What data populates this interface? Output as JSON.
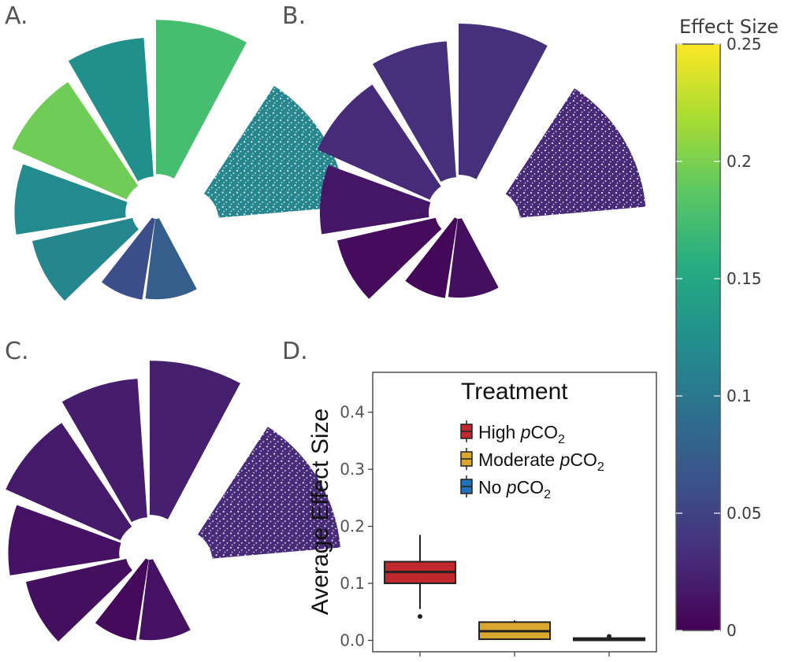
{
  "panels": {
    "A": {
      "label": "A.",
      "segment_values": [
        0.075,
        0.06,
        0.115,
        0.12,
        0.195,
        0.125,
        0.175,
        0.115
      ]
    },
    "B": {
      "label": "B.",
      "segment_values": [
        0.01,
        0.005,
        0.008,
        0.015,
        0.03,
        0.035,
        0.035,
        0.03
      ]
    },
    "C": {
      "label": "C.",
      "segment_values": [
        0.012,
        0.006,
        0.01,
        0.012,
        0.018,
        0.02,
        0.022,
        0.03
      ]
    },
    "D": {
      "label": "D."
    }
  },
  "colorbar": {
    "title": "Effect Size",
    "min": 0,
    "max": 0.25,
    "ticks": [
      {
        "value": 0.25,
        "label": "0.25"
      },
      {
        "value": 0.2,
        "label": "0.2"
      },
      {
        "value": 0.15,
        "label": "0.15"
      },
      {
        "value": 0.1,
        "label": "0.1"
      },
      {
        "value": 0.05,
        "label": "0.05"
      },
      {
        "value": 0,
        "label": "0"
      }
    ],
    "palette": [
      "#440154",
      "#472c7a",
      "#3b518b",
      "#2c718e",
      "#21908d",
      "#27ad81",
      "#5cc863",
      "#aadc32",
      "#fde725"
    ]
  },
  "chart_data": {
    "type": "boxplot",
    "ylabel": "Average Effect Size",
    "xlabel": "",
    "ylim": [
      -0.02,
      0.47
    ],
    "yticks": [
      {
        "value": 0.0,
        "label": "0.0"
      },
      {
        "value": 0.1,
        "label": "0.1"
      },
      {
        "value": 0.2,
        "label": "0.2"
      },
      {
        "value": 0.3,
        "label": "0.3"
      },
      {
        "value": 0.4,
        "label": "0.4"
      }
    ],
    "categories": [
      "High pCO2",
      "Moderate pCO2",
      "No pCO2"
    ],
    "legend": {
      "title": "Treatment",
      "position": "top-right",
      "entries": [
        {
          "prefix": "High ",
          "italic": "p",
          "main": "CO",
          "sub": "2"
        },
        {
          "prefix": "Moderate ",
          "italic": "p",
          "main": "CO",
          "sub": "2"
        },
        {
          "prefix": "No ",
          "italic": "p",
          "main": "CO",
          "sub": "2"
        }
      ]
    },
    "series": [
      {
        "name": "High pCO2",
        "color": "#c0282d",
        "q1": 0.1,
        "median": 0.12,
        "q3": 0.138,
        "whisker_low": 0.055,
        "whisker_high": 0.185,
        "outliers": [
          0.042
        ]
      },
      {
        "name": "Moderate pCO2",
        "color": "#d9a62e",
        "q1": 0.002,
        "median": 0.016,
        "q3": 0.032,
        "whisker_low": 0.002,
        "whisker_high": 0.035,
        "outliers": []
      },
      {
        "name": "No pCO2",
        "color": "#2272b9",
        "q1": 0.0,
        "median": 0.002,
        "q3": 0.004,
        "whisker_low": 0.0,
        "whisker_high": 0.006,
        "outliers": [
          0.007
        ]
      }
    ]
  }
}
